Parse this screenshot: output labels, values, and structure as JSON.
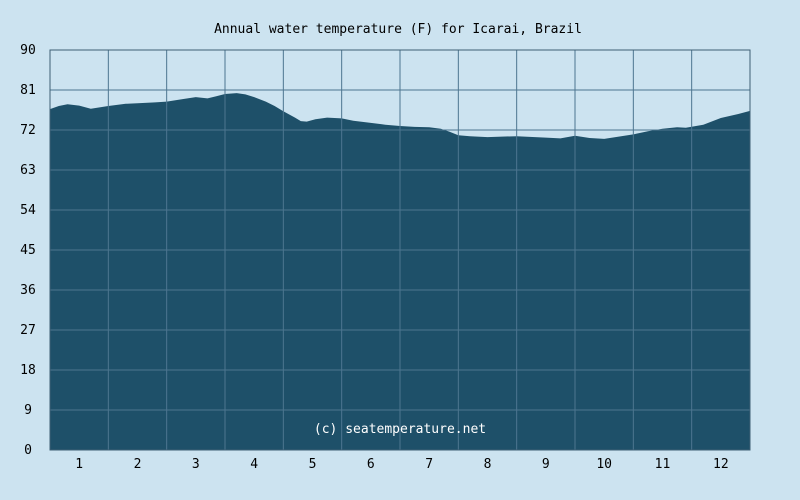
{
  "chart_data": {
    "type": "area",
    "title": "Annual water temperature (F) for Icarai, Brazil",
    "watermark": "(c) seatemperature.net",
    "xlabel": "",
    "ylabel": "",
    "ylim": [
      0,
      90
    ],
    "yticks": [
      "0",
      "9",
      "18",
      "27",
      "36",
      "45",
      "54",
      "63",
      "72",
      "81",
      "90"
    ],
    "xticks": [
      "1",
      "2",
      "3",
      "4",
      "5",
      "6",
      "7",
      "8",
      "9",
      "10",
      "11",
      "12"
    ],
    "grid": true,
    "x_month": [
      0.0,
      0.15,
      0.3,
      0.5,
      0.7,
      1.0,
      1.3,
      1.5,
      1.8,
      2.0,
      2.3,
      2.5,
      2.7,
      2.85,
      3.0,
      3.2,
      3.35,
      3.5,
      3.7,
      3.85,
      4.0,
      4.2,
      4.3,
      4.4,
      4.55,
      4.75,
      5.0,
      5.2,
      5.5,
      5.75,
      6.0,
      6.25,
      6.5,
      6.7,
      6.85,
      7.0,
      7.2,
      7.5,
      8.0,
      8.5,
      8.75,
      9.0,
      9.25,
      9.5,
      10.0,
      10.25,
      10.5,
      10.75,
      10.9,
      11.2,
      11.5,
      11.8,
      12.0
    ],
    "y": [
      76.7,
      77.4,
      77.8,
      77.5,
      76.8,
      77.4,
      77.9,
      78.0,
      78.2,
      78.4,
      79.0,
      79.4,
      79.1,
      79.6,
      80.1,
      80.3,
      80.0,
      79.4,
      78.4,
      77.4,
      76.2,
      74.8,
      74.0,
      73.9,
      74.4,
      74.8,
      74.6,
      74.1,
      73.6,
      73.2,
      72.9,
      72.7,
      72.6,
      72.3,
      71.6,
      70.8,
      70.6,
      70.4,
      70.6,
      70.3,
      70.1,
      70.7,
      70.2,
      70.0,
      71.0,
      71.7,
      72.3,
      72.6,
      72.5,
      73.2,
      74.7,
      75.6,
      76.3
    ]
  }
}
